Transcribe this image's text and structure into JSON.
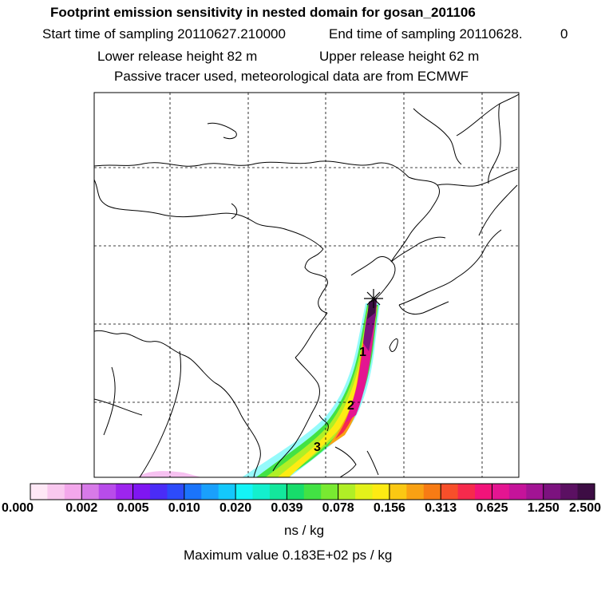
{
  "header": {
    "title": "Footprint emission sensitivity in nested domain for gosan_201106",
    "start_label": "Start time of sampling 20110627.210000",
    "end_label": "End time of sampling 20110628.",
    "end_suffix": "0",
    "lower_release": "Lower release height   82 m",
    "upper_release": "Upper release height   62 m",
    "info": "Passive tracer used, meteorological data are from ECMWF"
  },
  "map": {
    "receptor_marker": "star-icon",
    "time_labels": [
      "1",
      "2",
      "3"
    ]
  },
  "colorbar": {
    "colors": [
      "#fee8f6",
      "#f9c8ef",
      "#f3a7eb",
      "#d77ae8",
      "#b84cea",
      "#9d25ee",
      "#7f16f2",
      "#4a2cf7",
      "#2d4bfa",
      "#1b74fb",
      "#1aa0fc",
      "#14c8fc",
      "#14f4f7",
      "#13f0cd",
      "#13e79c",
      "#17dc6b",
      "#42e244",
      "#79ea31",
      "#b0ef26",
      "#e3f21a",
      "#fdeb13",
      "#fbc813",
      "#f9a113",
      "#f77b14",
      "#f74f2a",
      "#f62a4c",
      "#f2137a",
      "#e41591",
      "#c5139a",
      "#a21494",
      "#7c127f",
      "#5b1062",
      "#3d0d44"
    ],
    "tick_labels": [
      "0.000",
      "0.002",
      "0.005",
      "0.010",
      "0.020",
      "0.039",
      "0.078",
      "0.156",
      "0.313",
      "0.625",
      "1.250",
      "2.500"
    ],
    "units": "ns / kg",
    "max_value": "Maximum value  0.183E+02 ps / kg"
  }
}
